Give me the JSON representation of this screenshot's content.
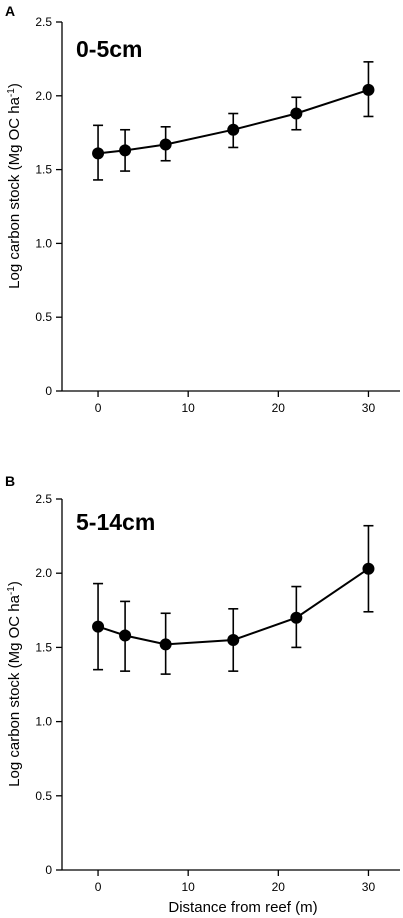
{
  "chart_data": [
    {
      "type": "line",
      "panel_letter": "A",
      "inset_label": "0-5cm",
      "ylabel": "Log carbon stock (Mg OC ha",
      "ylabel_sup": "-1",
      "ylabel_close": ")",
      "xlabel": "",
      "x": [
        0,
        3,
        7.5,
        15,
        22,
        30
      ],
      "y": [
        1.61,
        1.63,
        1.67,
        1.77,
        1.88,
        2.04
      ],
      "y_err_low": [
        1.43,
        1.49,
        1.56,
        1.65,
        1.77,
        1.86
      ],
      "y_err_high": [
        1.8,
        1.77,
        1.79,
        1.88,
        1.99,
        2.23
      ],
      "xlim": [
        -4,
        33.5
      ],
      "ylim": [
        0,
        2.5
      ],
      "x_ticks": [
        0,
        10,
        20,
        30
      ],
      "x_tick_labels": [
        "0",
        "10",
        "20",
        "30"
      ],
      "y_ticks": [
        0,
        0.5,
        1.0,
        1.5,
        2.0,
        2.5
      ],
      "y_tick_labels": [
        "0",
        "0.5",
        "1.0",
        "1.5",
        "2.0",
        "2.5"
      ],
      "grid": false,
      "marker_color": "#000000"
    },
    {
      "type": "line",
      "panel_letter": "B",
      "inset_label": "5-14cm",
      "ylabel": "Log carbon stock (Mg OC ha",
      "ylabel_sup": "-1",
      "ylabel_close": ")",
      "xlabel": "Distance from reef (m)",
      "x": [
        0,
        3,
        7.5,
        15,
        22,
        30
      ],
      "y": [
        1.64,
        1.58,
        1.52,
        1.55,
        1.7,
        2.03
      ],
      "y_err_low": [
        1.35,
        1.34,
        1.32,
        1.34,
        1.5,
        1.74
      ],
      "y_err_high": [
        1.93,
        1.81,
        1.73,
        1.76,
        1.91,
        2.32
      ],
      "xlim": [
        -4,
        33.5
      ],
      "ylim": [
        0,
        2.5
      ],
      "x_ticks": [
        0,
        10,
        20,
        30
      ],
      "x_tick_labels": [
        "0",
        "10",
        "20",
        "30"
      ],
      "y_ticks": [
        0,
        0.5,
        1.0,
        1.5,
        2.0,
        2.5
      ],
      "y_tick_labels": [
        "0",
        "0.5",
        "1.0",
        "1.5",
        "2.0",
        "2.5"
      ],
      "grid": false,
      "marker_color": "#000000"
    }
  ]
}
